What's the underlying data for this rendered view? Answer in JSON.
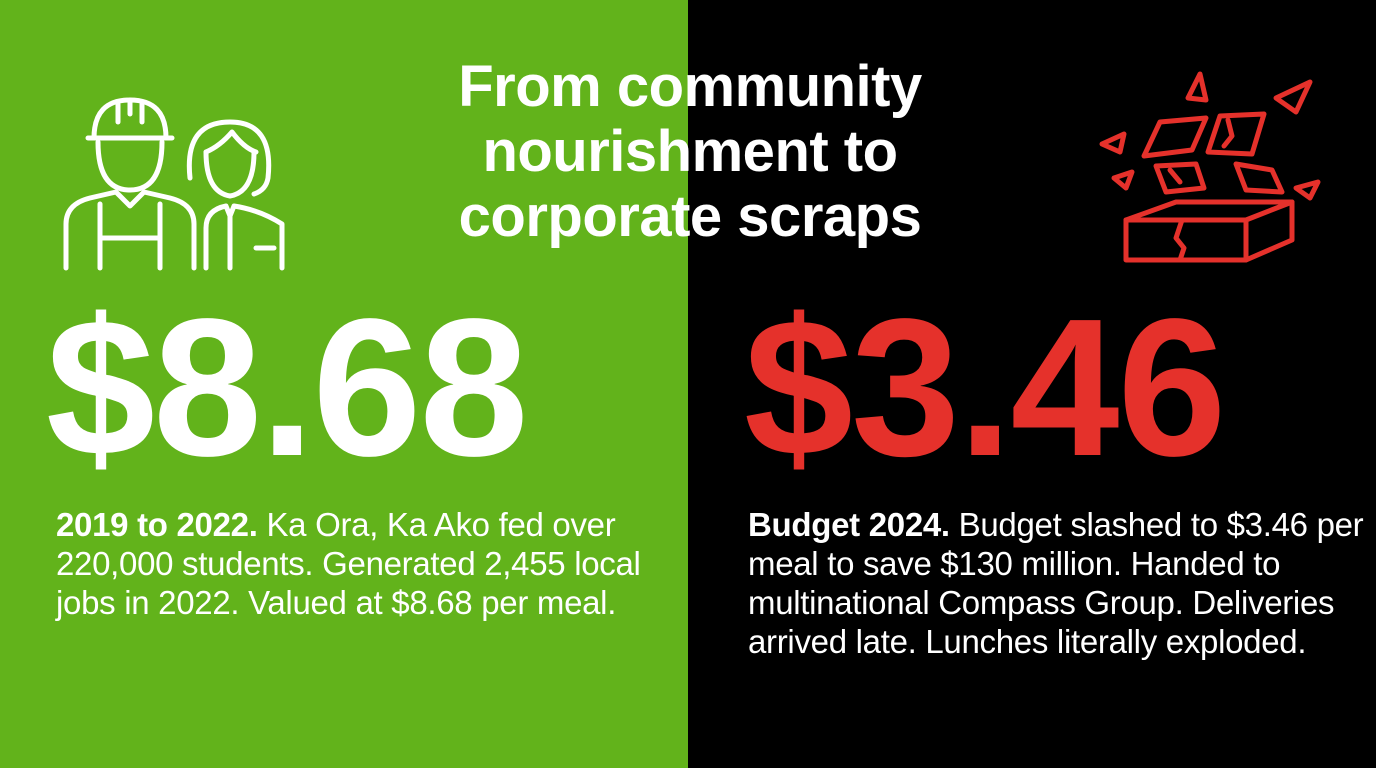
{
  "title": {
    "lines": [
      "From community",
      "nourishment to",
      "corporate scraps"
    ]
  },
  "left": {
    "background": "#62b31b",
    "icon": "workers-icon",
    "amount": "$8.68",
    "lead": "2019 to 2022.",
    "body": " Ka Ora, Ka Ako fed over 220,000 students. Generated 2,455 local jobs in 2022. Valued at $8.68 per meal."
  },
  "right": {
    "background": "#000000",
    "icon": "exploding-box-icon",
    "amount": "$3.46",
    "amount_color": "#e5312b",
    "lead": "Budget 2024.",
    "body": " Budget slashed to $3.46 per meal to save $130 million. Handed to multinational Compass Group. Deliveries arrived late. Lunches literally exploded."
  }
}
